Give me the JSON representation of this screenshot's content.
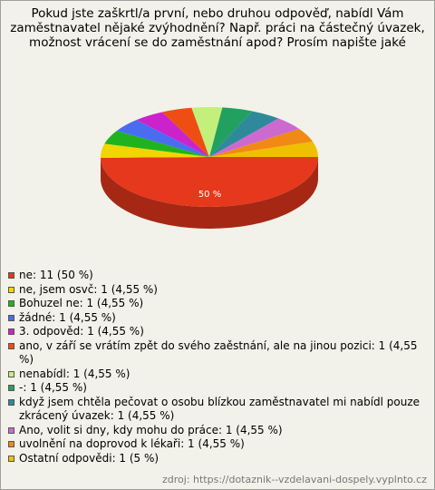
{
  "chart_data": {
    "type": "pie3d",
    "title": "Pokud jste zaškrtl/a první, nebo druhou odpověď, nabídl Vám zaměstnavatel nějaké zvýhodnění? Např. práci na částečný úvazek, možnost vrácení se do zaměstnání apod? Prosím napište jaké",
    "legend": [
      "ne: 11 (50 %)",
      "ne, jsem osvč: 1 (4,55 %)",
      "Bohuzel ne: 1 (4,55 %)",
      "žádné: 1 (4,55 %)",
      "3. odpověd: 1 (4,55 %)",
      "ano, v září se vrátím zpět do svého zaěstnání, ale na jinou pozici: 1 (4,55 %)",
      "nenabídl: 1 (4,55 %)",
      "-: 1 (4,55 %)",
      "když jsem chtěla pečovat o osobu blízkou zaměstnavatel mi nabídl pouze zkrácený úvazek: 1 (4,55 %)",
      "Ano, volit si dny, kdy mohu do práce: 1 (4,55 %)",
      "uvolnění na doprovod k lékaři: 1 (4,55 %)",
      "Ostatní odpovědi: 1 (5 %)"
    ],
    "values": [
      50,
      4.55,
      4.55,
      4.55,
      4.55,
      4.55,
      4.55,
      4.55,
      4.55,
      4.55,
      4.55,
      5
    ],
    "value_labels": [
      "50 %",
      null,
      null,
      null,
      null,
      null,
      null,
      null,
      null,
      null,
      null,
      null
    ],
    "colors": [
      "#e6381c",
      "#f2d600",
      "#1fb41f",
      "#4a6cf0",
      "#cc22cc",
      "#ee4e14",
      "#c2f07a",
      "#22a060",
      "#2e8a9a",
      "#cc6ad0",
      "#f08a14",
      "#f0c000"
    ],
    "source": "zdroj: https://dotaznik--vzdelavani-dospely.vyplnto.cz"
  }
}
